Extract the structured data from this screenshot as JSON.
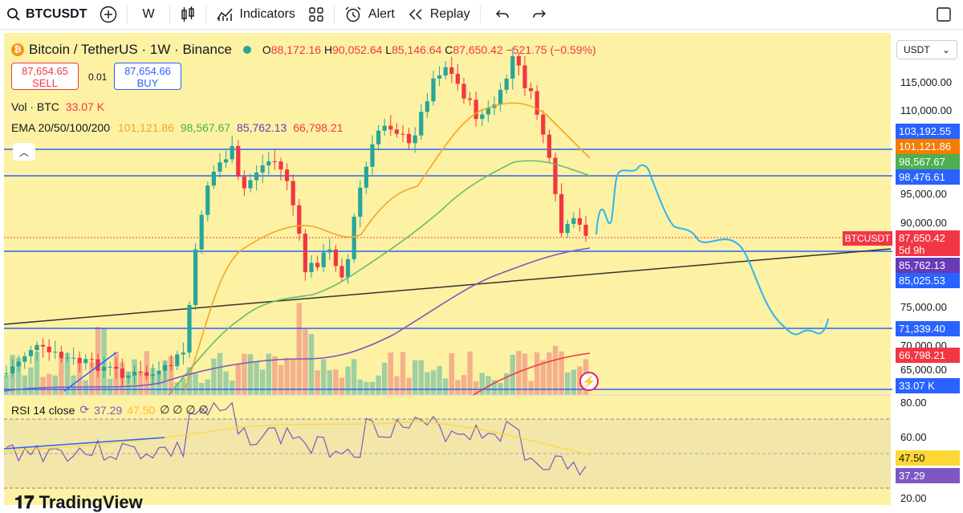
{
  "toolbar": {
    "symbol": "BTCUSDT",
    "interval": "W",
    "indicators_label": "Indicators",
    "alert_label": "Alert",
    "replay_label": "Replay"
  },
  "legend": {
    "title": "Bitcoin / TetherUS · 1W · Binance",
    "open_label": "O",
    "open": "88,172.16",
    "high_label": "H",
    "high": "90,052.64",
    "low_label": "L",
    "low": "85,146.64",
    "close_label": "C",
    "close": "87,650.42",
    "change": "−521.75 (−0.59%)",
    "sell_price": "87,654.65",
    "sell_label": "SELL",
    "spread": "0.01",
    "buy_price": "87,654.66",
    "buy_label": "BUY",
    "vol_label": "Vol · BTC",
    "vol_value": "33.07 K",
    "ema_label": "EMA 20/50/100/200",
    "ema20": "101,121.86",
    "ema50": "98,567.67",
    "ema100": "85,762.13",
    "ema200": "66,798.21",
    "rsi_label": "RSI 14 close",
    "rsi_value": "37.29",
    "rsi_ma": "47.50",
    "rsi_extra": "∅ ∅ ∅ ∅"
  },
  "currency": "USDT",
  "axis_ticks": [
    "115,000.00",
    "110,000.00",
    "95,000.00",
    "90,000.00",
    "75,000.00",
    "70,000.00",
    "65,000.00",
    "80.00",
    "60.00",
    "20.00"
  ],
  "price_tags": [
    {
      "text": "103,192.55",
      "color": "#2962ff"
    },
    {
      "text": "101,121.86",
      "color": "#f57c00"
    },
    {
      "text": "98,567.67",
      "color": "#4caf50"
    },
    {
      "text": "98,476.61",
      "color": "#2962ff"
    },
    {
      "text": "87,650.42",
      "sub": "5d 9h",
      "color": "#f23645"
    },
    {
      "text": "85,762.13",
      "color": "#673ab7"
    },
    {
      "text": "85,025.53",
      "color": "#2962ff"
    },
    {
      "text": "71,339.40",
      "color": "#2962ff"
    },
    {
      "text": "66,798.21",
      "color": "#f23645"
    },
    {
      "text": "33.07 K",
      "color": "#2962ff"
    },
    {
      "text": "47.50",
      "color": "#fdd835"
    },
    {
      "text": "37.29",
      "color": "#7e57c2"
    }
  ],
  "sym_tag": "BTCUSDT",
  "brand": "TradingView",
  "colors": {
    "up": "#26a69a",
    "down": "#f23645",
    "ema20": "#f5a623",
    "ema50": "#66bb6a",
    "ema100": "#7e57c2",
    "projection": "#29b6f6",
    "hline": "#2962ff"
  }
}
